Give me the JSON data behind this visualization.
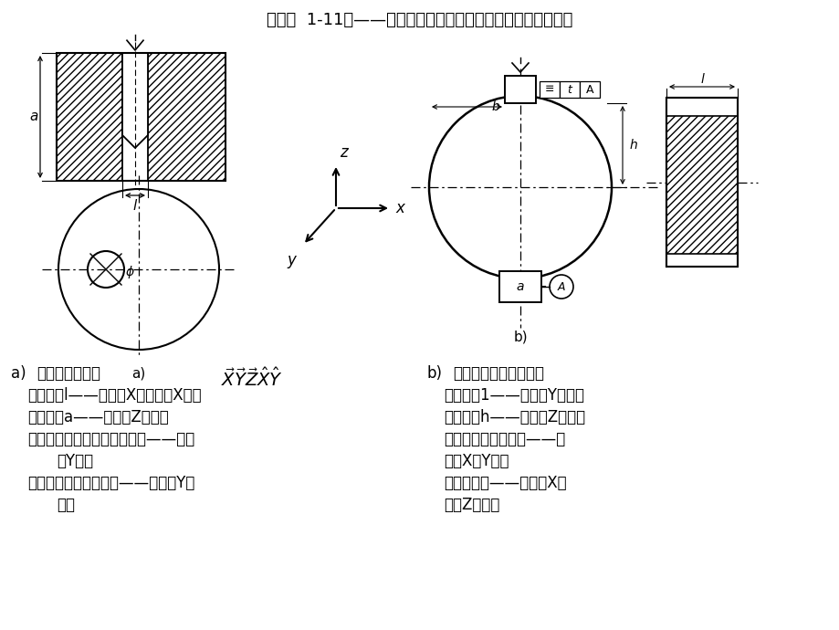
{
  "title": "第一章  1-11题——确定加工图示待加工表面应限制的自由度数",
  "bg_color": "#ffffff",
  "text_color": "#000000",
  "text_a_title": "a)    限制五个自由度",
  "text_a_line1": "保证尺寸l——限制沿X移动；绕X转动",
  "text_a_line2": "保证尺寸a——限制沿Z移动；",
  "text_a_line3": "保证孔轴线通过外圆轴线平面——限制",
  "text_a_line4": "    沿Y移动",
  "text_a_line5": "保证孔轴线与底面垂直——限制绕Y转",
  "text_a_line6": "    动。",
  "text_b_title": "b)    六个自由度都必须限制",
  "text_b_line1": "保证尺寸1——限制沿Y移动；",
  "text_b_line2": "保证尺寸h——限制沿Z移动；",
  "text_b_line3": "保证槽底与轴线平行——限",
  "text_b_line4": "制绕X，Y转动",
  "text_b_line5": "保证对称度——限制沿X移",
  "text_b_line6": "动和Z转动；"
}
